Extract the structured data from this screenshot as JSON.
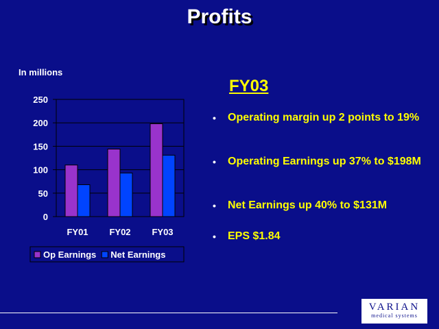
{
  "title": "Profits",
  "unit_label": "In millions",
  "section_heading": "FY03",
  "bullets": [
    "Operating margin up 2 points to 19%",
    "Operating Earnings up 37% to $198M",
    "Net Earnings up 40% to $131M",
    "EPS $1.84"
  ],
  "logo": {
    "name": "VARIAN",
    "tagline": "medical systems"
  },
  "chart_data": {
    "type": "bar",
    "categories": [
      "FY01",
      "FY02",
      "FY03"
    ],
    "series": [
      {
        "name": "Op Earnings",
        "values": [
          110,
          144,
          198
        ],
        "color": "#9933cc"
      },
      {
        "name": "Net Earnings",
        "values": [
          68,
          93,
          131
        ],
        "color": "#0044ff"
      }
    ],
    "yticks": [
      0,
      50,
      100,
      150,
      200,
      250
    ],
    "ylim": [
      0,
      250
    ],
    "grid": true,
    "legend": "bottom"
  }
}
